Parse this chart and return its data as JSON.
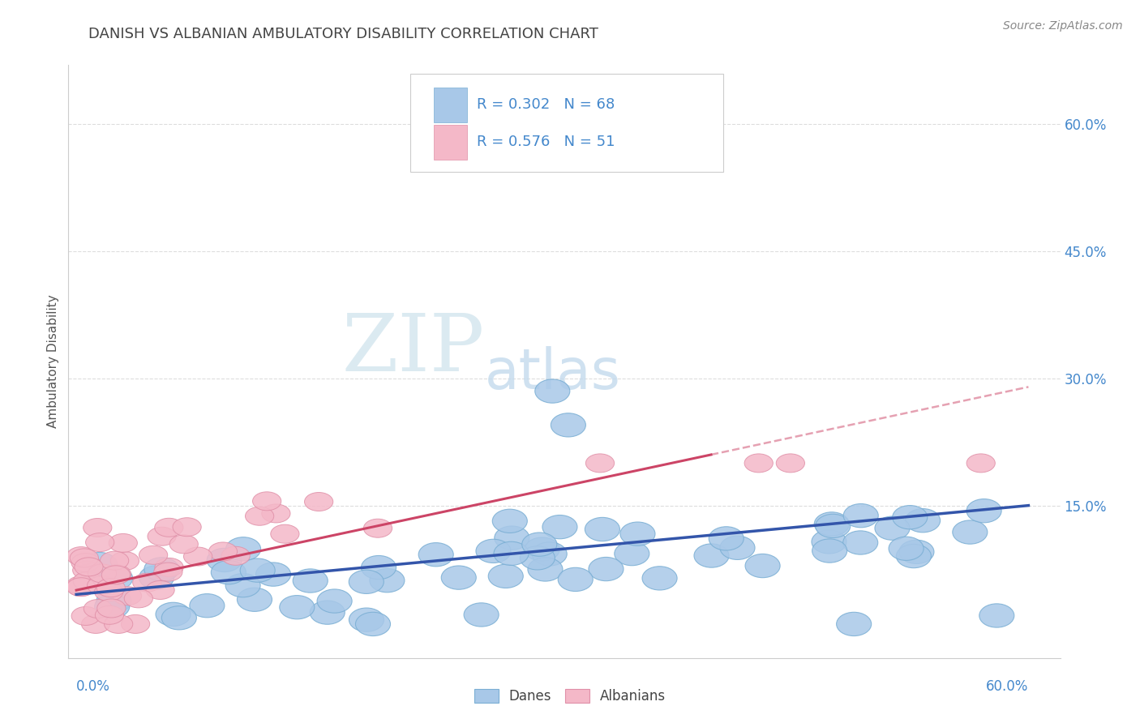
{
  "title": "DANISH VS ALBANIAN AMBULATORY DISABILITY CORRELATION CHART",
  "source": "Source: ZipAtlas.com",
  "ylabel": "Ambulatory Disability",
  "danes_R": 0.302,
  "danes_N": 68,
  "albanians_R": 0.576,
  "albanians_N": 51,
  "danes_color": "#A8C8E8",
  "danes_edge_color": "#7BAFD4",
  "albanians_color": "#F4B8C8",
  "albanians_edge_color": "#E090A8",
  "danes_line_color": "#3355AA",
  "albanians_line_color": "#CC4466",
  "background_color": "#FFFFFF",
  "grid_color": "#DDDDDD",
  "watermark_zip": "ZIP",
  "watermark_atlas": "atlas",
  "xlim": [
    -0.005,
    0.62
  ],
  "ylim": [
    -0.03,
    0.67
  ],
  "ytick_vals": [
    0.15,
    0.3,
    0.45,
    0.6
  ],
  "ytick_labels": [
    "15.0%",
    "30.0%",
    "45.0%",
    "60.0%"
  ],
  "title_color": "#444444",
  "tick_color": "#4488CC"
}
